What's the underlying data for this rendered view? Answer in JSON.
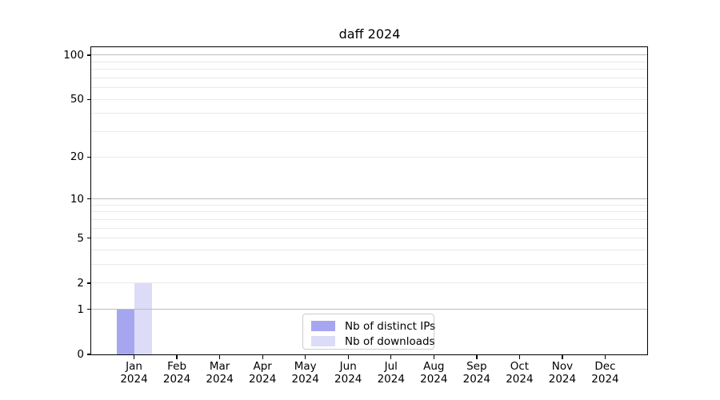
{
  "figure": {
    "background": "#ffffff"
  },
  "chart_data": {
    "type": "bar",
    "title": "daff 2024",
    "x_categories_line1": [
      "Jan",
      "Feb",
      "Mar",
      "Apr",
      "May",
      "Jun",
      "Jul",
      "Aug",
      "Sep",
      "Oct",
      "Nov",
      "Dec"
    ],
    "x_categories_line2": [
      "2024",
      "2024",
      "2024",
      "2024",
      "2024",
      "2024",
      "2024",
      "2024",
      "2024",
      "2024",
      "2024",
      "2024"
    ],
    "series": [
      {
        "name": "Nb of distinct IPs",
        "color": "#a6a6f0",
        "values": [
          1,
          0,
          0,
          0,
          0,
          0,
          0,
          0,
          0,
          0,
          0,
          0
        ]
      },
      {
        "name": "Nb of downloads",
        "color": "#dcdcf8",
        "values": [
          2,
          0,
          0,
          0,
          0,
          0,
          0,
          0,
          0,
          0,
          0,
          0
        ]
      }
    ],
    "y_axis": {
      "scale": "log1p",
      "tick_labels": [
        "100",
        "50",
        "20",
        "10",
        "5",
        "2",
        "1",
        "0"
      ],
      "tick_values": [
        100,
        50,
        20,
        10,
        5,
        2,
        1,
        0
      ],
      "ylim": [
        0,
        113
      ],
      "major_gridline_values": [
        1,
        10,
        100
      ],
      "minor_gridline_values": [
        2,
        3,
        4,
        5,
        6,
        7,
        8,
        9,
        20,
        30,
        40,
        50,
        60,
        70,
        80,
        90
      ]
    },
    "legend": {
      "position": "lower center",
      "entries": [
        "Nb of distinct IPs",
        "Nb of downloads"
      ]
    },
    "grid": true,
    "colors": {
      "major_grid": "#bcbcbc",
      "minor_grid": "#e9e9e9",
      "axis": "#000000",
      "text": "#000000",
      "legend_border": "#cccccc"
    }
  }
}
